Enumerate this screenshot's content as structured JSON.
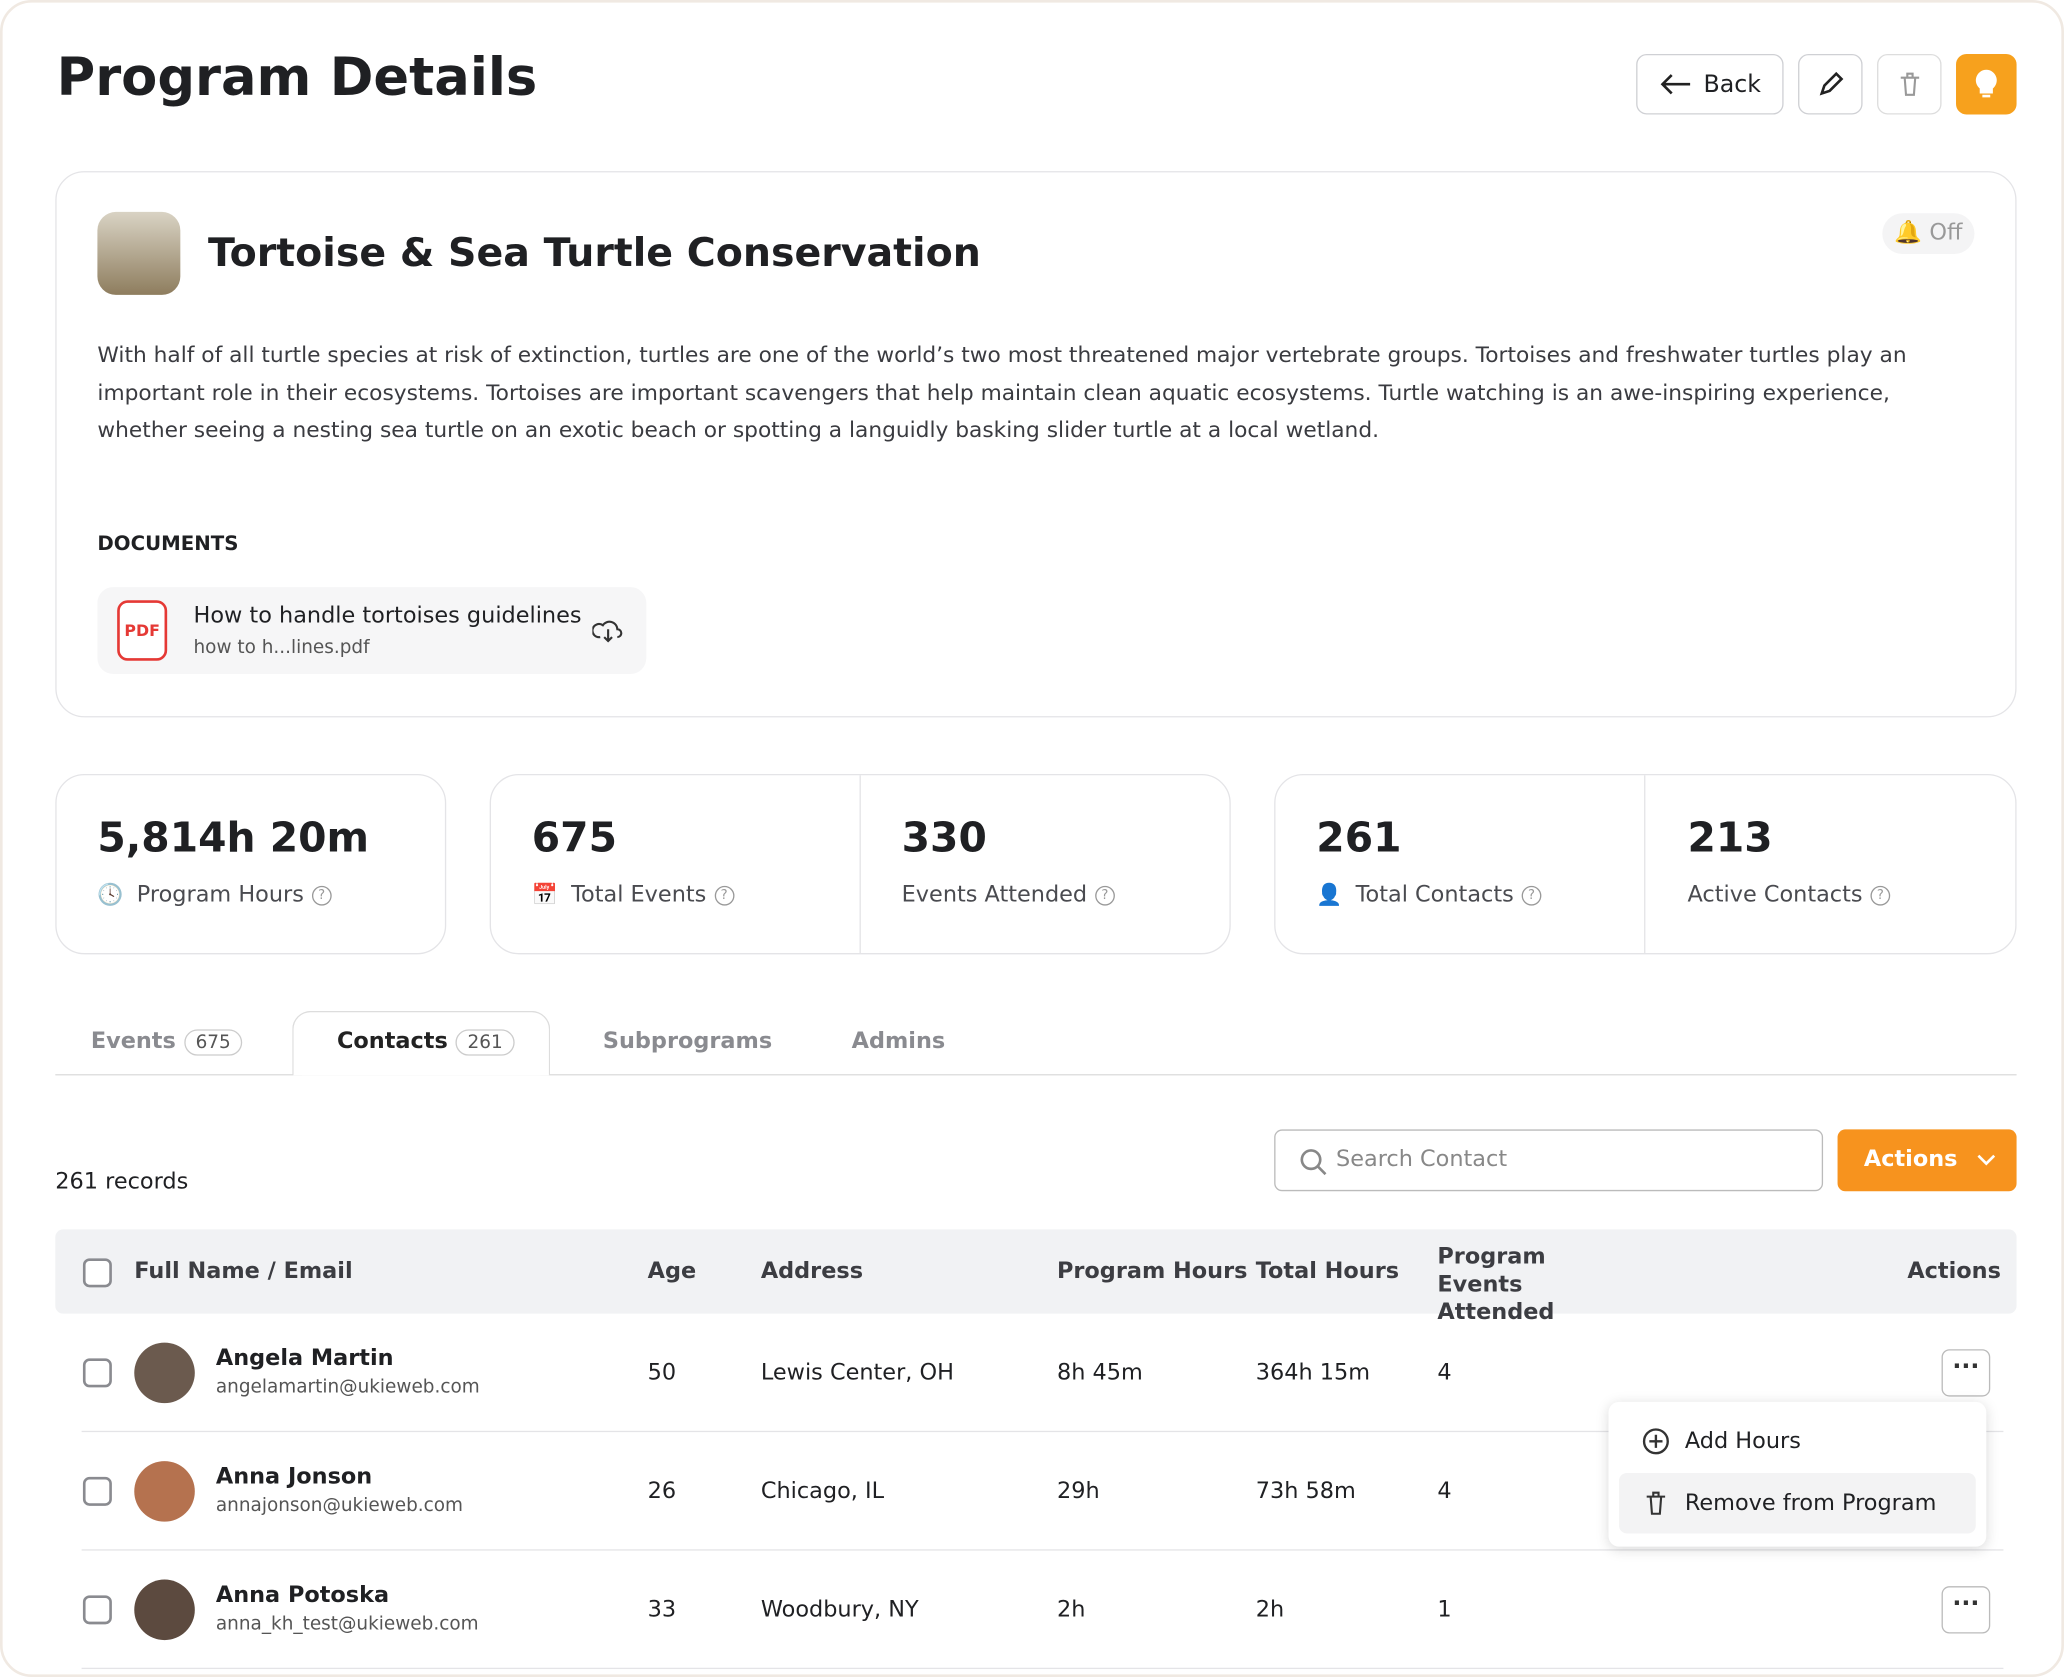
{
  "header": {
    "title": "Program Details",
    "back": "Back"
  },
  "program": {
    "title": "Tortoise & Sea Turtle Conservation",
    "notification": "Off",
    "description": "With half of all turtle species at risk of extinction, turtles are one of the world’s two most threatened major vertebrate groups. Tortoises and freshwater turtles play an important role in their ecosystems. Tortoises are important scavengers that help maintain clean aquatic ecosystems. Turtle watching is an awe-inspiring experience, whether seeing a nesting sea turtle on an exotic beach or spotting a languidly basking slider turtle at a local wetland.",
    "documents_label": "DOCUMENTS",
    "document": {
      "badge": "PDF",
      "title": "How to handle tortoises guidelines",
      "filename": "how to h...lines.pdf"
    }
  },
  "stats": [
    {
      "value": "5,814h 20m",
      "label": "Program Hours"
    },
    {
      "value": 675,
      "label": "Total Events"
    },
    {
      "value": 330,
      "label": "Events Attended"
    },
    {
      "value": 261,
      "label": "Total Contacts"
    },
    {
      "value": 213,
      "label": "Active Contacts"
    }
  ],
  "tabs": [
    {
      "label": "Events",
      "count": 675
    },
    {
      "label": "Contacts",
      "count": 261
    },
    {
      "label": "Subprograms"
    },
    {
      "label": "Admins"
    }
  ],
  "toolbar": {
    "records": "261 records",
    "search_placeholder": "Search Contact",
    "actions": "Actions"
  },
  "table": {
    "columns": [
      "Full Name / Email",
      "Age",
      "Address",
      "Program Hours",
      "Total Hours",
      "Program Events Attended",
      "Actions"
    ],
    "rows": [
      {
        "name": "Angela Martin",
        "email": "angelamartin@ukieweb.com",
        "age": 50,
        "address": "Lewis Center, OH",
        "program_hours": "8h 45m",
        "total_hours": "364h 15m",
        "events_attended": 4
      },
      {
        "name": "Anna Jonson",
        "email": "annajonson@ukieweb.com",
        "age": 26,
        "address": "Chicago, IL",
        "program_hours": "29h",
        "total_hours": "73h 58m",
        "events_attended": 4
      },
      {
        "name": "Anna Potoska",
        "email": "anna_kh_test@ukieweb.com",
        "age": 33,
        "address": "Woodbury, NY",
        "program_hours": "2h",
        "total_hours": "2h",
        "events_attended": 1
      }
    ]
  },
  "menu": [
    "Add Hours",
    "Remove from Program"
  ]
}
